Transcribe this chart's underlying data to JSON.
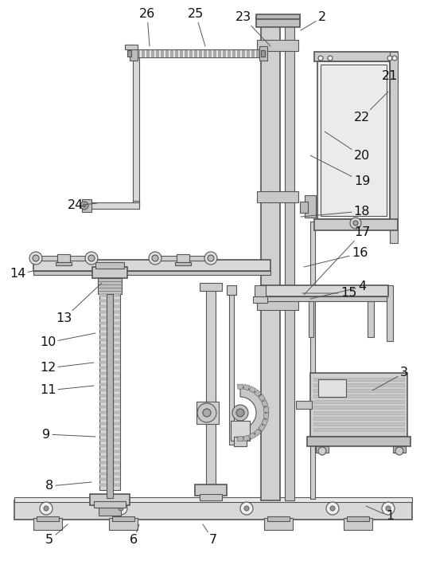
{
  "bg_color": "#ffffff",
  "line_color": "#555555",
  "label_color": "#111111",
  "fig_width": 5.38,
  "fig_height": 7.04,
  "label_data": [
    [
      "1",
      490,
      648,
      460,
      635
    ],
    [
      "2",
      405,
      22,
      378,
      38
    ],
    [
      "3",
      508,
      468,
      468,
      490
    ],
    [
      "4",
      455,
      360,
      390,
      375
    ],
    [
      "5",
      62,
      678,
      85,
      658
    ],
    [
      "6",
      168,
      678,
      175,
      658
    ],
    [
      "7",
      268,
      678,
      255,
      658
    ],
    [
      "8",
      62,
      610,
      115,
      605
    ],
    [
      "9",
      58,
      545,
      120,
      548
    ],
    [
      "10",
      60,
      430,
      120,
      418
    ],
    [
      "11",
      60,
      490,
      118,
      484
    ],
    [
      "12",
      60,
      462,
      118,
      455
    ],
    [
      "13",
      80,
      400,
      128,
      355
    ],
    [
      "14",
      22,
      344,
      42,
      340
    ],
    [
      "15",
      438,
      368,
      380,
      368
    ],
    [
      "16",
      452,
      318,
      382,
      335
    ],
    [
      "17",
      455,
      292,
      382,
      370
    ],
    [
      "18",
      455,
      265,
      378,
      272
    ],
    [
      "19",
      455,
      228,
      390,
      195
    ],
    [
      "20",
      455,
      196,
      408,
      165
    ],
    [
      "21",
      490,
      95,
      490,
      82
    ],
    [
      "22",
      455,
      148,
      488,
      115
    ],
    [
      "23",
      306,
      22,
      340,
      58
    ],
    [
      "24",
      95,
      258,
      122,
      255
    ],
    [
      "25",
      246,
      18,
      258,
      58
    ],
    [
      "26",
      185,
      18,
      188,
      58
    ]
  ]
}
